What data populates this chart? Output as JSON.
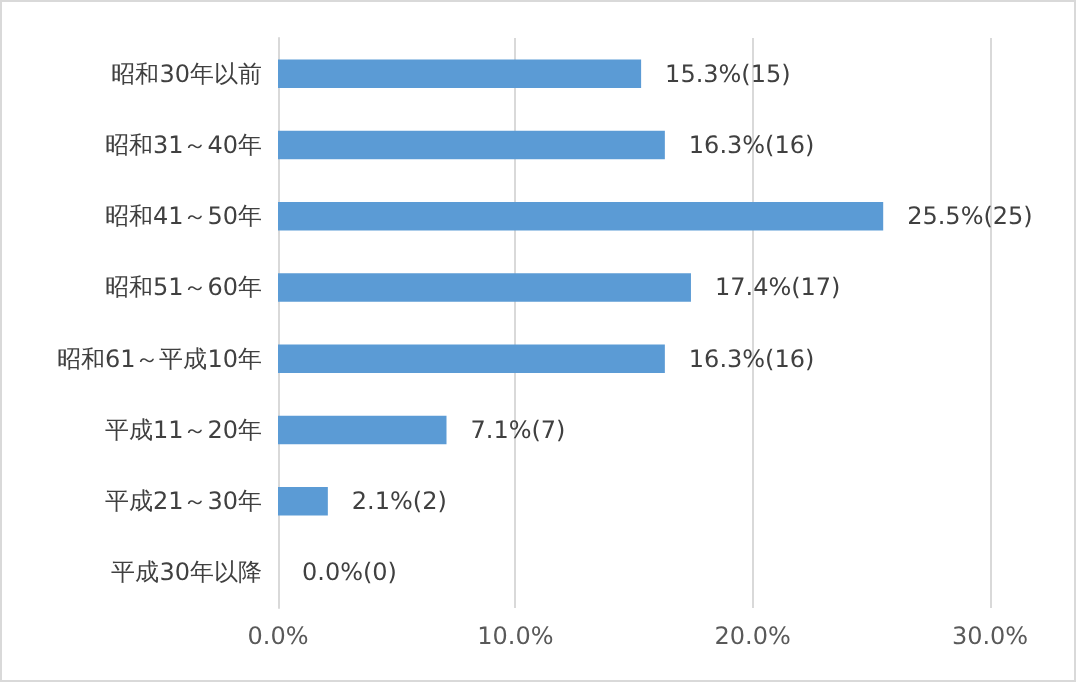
{
  "chart_data": {
    "type": "bar",
    "orientation": "horizontal",
    "categories": [
      "昭和30年以前",
      "昭和31～40年",
      "昭和41～50年",
      "昭和51～60年",
      "昭和61～平成10年",
      "平成11～20年",
      "平成21～30年",
      "平成30年以降"
    ],
    "values": [
      15.3,
      16.3,
      25.5,
      17.4,
      16.3,
      7.1,
      2.1,
      0.0
    ],
    "value_labels": [
      "15.3%(15)",
      "16.3%(16)",
      "25.5%(25)",
      "17.4%(17)",
      "16.3%(16)",
      "7.1%(7)",
      "2.1%(2)",
      "0.0%(0)"
    ],
    "color": "#5b9bd5",
    "xlim": [
      0,
      30
    ],
    "xticks": [
      {
        "value": 0,
        "label": "0.0%"
      },
      {
        "value": 10,
        "label": "10.0%"
      },
      {
        "value": 20,
        "label": "20.0%"
      },
      {
        "value": 30,
        "label": "30.0%"
      }
    ],
    "grid": "x"
  }
}
